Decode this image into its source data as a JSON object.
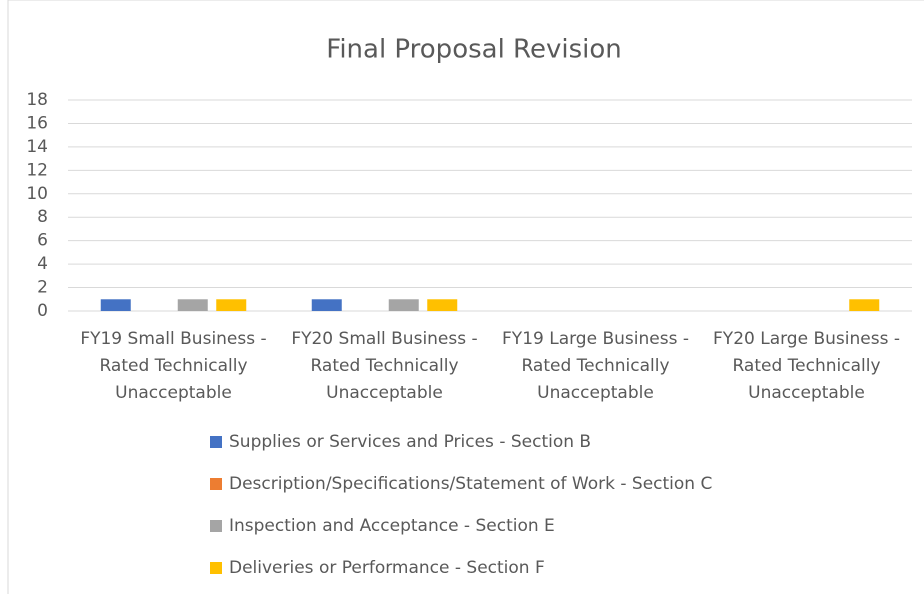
{
  "chart_data": {
    "type": "bar",
    "title": "Final Proposal Revision",
    "categories": [
      "FY19 Small Business - Rated Technically Unacceptable",
      "FY20 Small Business - Rated Technically Unacceptable",
      "FY19 Large Business - Rated Technically Unacceptable",
      "FY20 Large Business - Rated Technically Unacceptable"
    ],
    "series": [
      {
        "name": "Supplies or Services and Prices - Section B",
        "color": "#4472c4",
        "values": [
          1,
          1,
          0,
          0
        ]
      },
      {
        "name": "Description/Specifications/Statement of Work - Section C",
        "color": "#ed7d31",
        "values": [
          0,
          0,
          0,
          0
        ]
      },
      {
        "name": "Inspection and Acceptance - Section E",
        "color": "#a5a5a5",
        "values": [
          1,
          1,
          0,
          0
        ]
      },
      {
        "name": "Deliveries or Performance - Section F",
        "color": "#ffc000",
        "values": [
          1,
          1,
          0,
          1
        ]
      }
    ],
    "ylim": [
      0,
      18
    ],
    "yticks": [
      0,
      2,
      4,
      6,
      8,
      10,
      12,
      14,
      16,
      18
    ],
    "grid": true,
    "legend": "bottom"
  }
}
